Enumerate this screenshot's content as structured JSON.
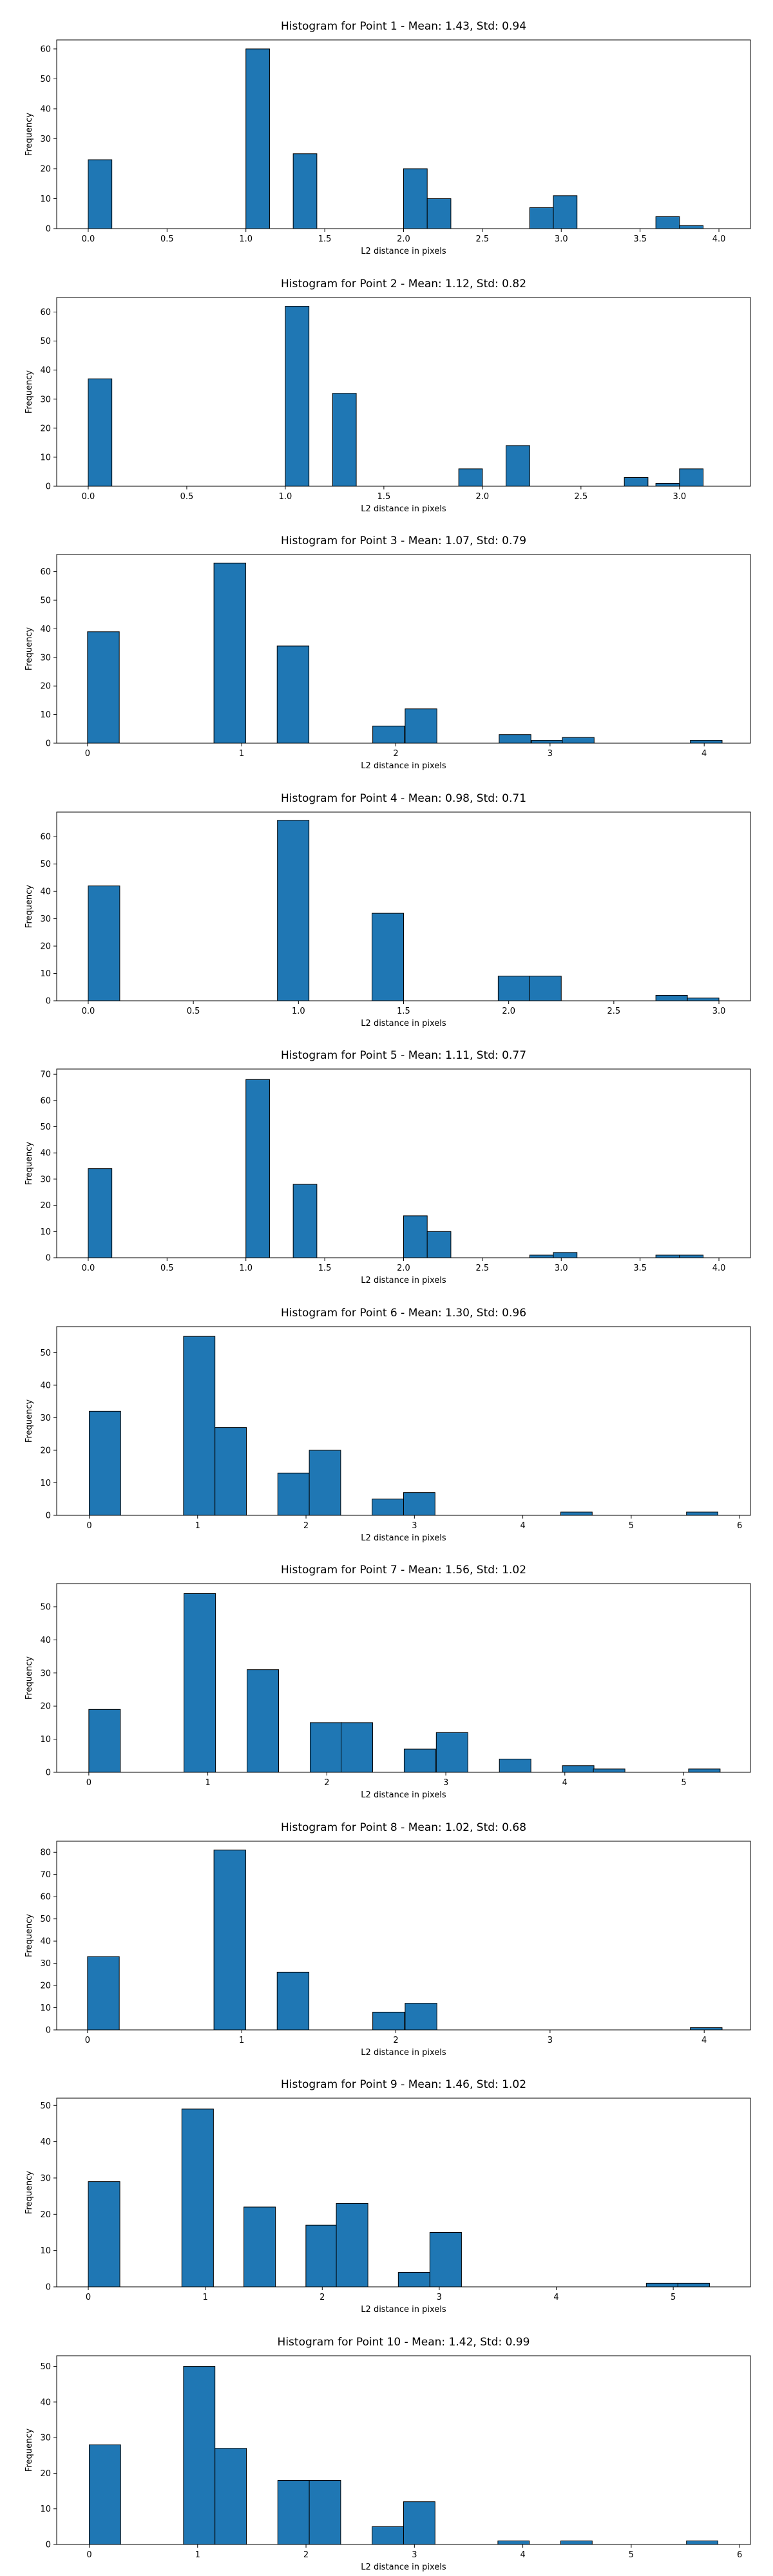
{
  "figure": {
    "bar_color": "#1f77b4",
    "edge_color": "#000000"
  },
  "chart_data": [
    {
      "type": "bar",
      "title": "Histogram for Point 1 - Mean: 1.43, Std: 0.94",
      "xlabel": "L2 distance in pixels",
      "ylabel": "Frequency",
      "xlim": [
        -0.2,
        4.2
      ],
      "ylim": [
        0,
        63
      ],
      "xticks": [
        0.0,
        0.5,
        1.0,
        1.5,
        2.0,
        2.5,
        3.0,
        3.5,
        4.0
      ],
      "xtick_labels": [
        "0.0",
        "0.5",
        "1.0",
        "1.5",
        "2.0",
        "2.5",
        "3.0",
        "3.5",
        "4.0"
      ],
      "yticks": [
        0,
        10,
        20,
        30,
        40,
        50,
        60
      ],
      "ytick_labels": [
        "0",
        "10",
        "20",
        "30",
        "40",
        "50",
        "60"
      ],
      "bin_width": 0.15,
      "bins": [
        [
          0.0,
          23
        ],
        [
          1.0,
          60
        ],
        [
          1.3,
          25
        ],
        [
          2.0,
          20
        ],
        [
          2.15,
          10
        ],
        [
          2.8,
          7
        ],
        [
          2.95,
          11
        ],
        [
          3.6,
          4
        ],
        [
          3.75,
          1
        ]
      ]
    },
    {
      "type": "bar",
      "title": "Histogram for Point 2 - Mean: 1.12, Std: 0.82",
      "xlabel": "L2 distance in pixels",
      "ylabel": "Frequency",
      "xlim": [
        -0.16,
        3.36
      ],
      "ylim": [
        0,
        65
      ],
      "xticks": [
        0.0,
        0.5,
        1.0,
        1.5,
        2.0,
        2.5,
        3.0
      ],
      "xtick_labels": [
        "0.0",
        "0.5",
        "1.0",
        "1.5",
        "2.0",
        "2.5",
        "3.0"
      ],
      "yticks": [
        0,
        10,
        20,
        30,
        40,
        50,
        60
      ],
      "ytick_labels": [
        "0",
        "10",
        "20",
        "30",
        "40",
        "50",
        "60"
      ],
      "bin_width": 0.12,
      "bins": [
        [
          0.0,
          37
        ],
        [
          1.0,
          62
        ],
        [
          1.24,
          32
        ],
        [
          1.88,
          6
        ],
        [
          2.12,
          14
        ],
        [
          2.72,
          3
        ],
        [
          2.88,
          1
        ],
        [
          3.0,
          6
        ]
      ]
    },
    {
      "type": "bar",
      "title": "Histogram for Point 3 - Mean: 1.07, Std: 0.79",
      "xlabel": "L2 distance in pixels",
      "ylabel": "Frequency",
      "xlim": [
        -0.2,
        4.3
      ],
      "ylim": [
        0,
        66
      ],
      "xticks": [
        0,
        1,
        2,
        3,
        4
      ],
      "xtick_labels": [
        "0",
        "1",
        "2",
        "3",
        "4"
      ],
      "yticks": [
        0,
        10,
        20,
        30,
        40,
        50,
        60
      ],
      "ytick_labels": [
        "0",
        "10",
        "20",
        "30",
        "40",
        "50",
        "60"
      ],
      "bin_width": 0.206,
      "bins": [
        [
          0.0,
          39
        ],
        [
          0.82,
          63
        ],
        [
          1.23,
          34
        ],
        [
          1.85,
          6
        ],
        [
          2.06,
          12
        ],
        [
          2.67,
          3
        ],
        [
          2.88,
          1
        ],
        [
          3.08,
          2
        ],
        [
          3.91,
          1
        ]
      ]
    },
    {
      "type": "bar",
      "title": "Histogram for Point 4 - Mean: 0.98, Std: 0.71",
      "xlabel": "L2 distance in pixels",
      "ylabel": "Frequency",
      "xlim": [
        -0.15,
        3.15
      ],
      "ylim": [
        0,
        69
      ],
      "xticks": [
        0.0,
        0.5,
        1.0,
        1.5,
        2.0,
        2.5,
        3.0
      ],
      "xtick_labels": [
        "0.0",
        "0.5",
        "1.0",
        "1.5",
        "2.0",
        "2.5",
        "3.0"
      ],
      "yticks": [
        0,
        10,
        20,
        30,
        40,
        50,
        60
      ],
      "ytick_labels": [
        "0",
        "10",
        "20",
        "30",
        "40",
        "50",
        "60"
      ],
      "bin_width": 0.15,
      "bins": [
        [
          0.0,
          42
        ],
        [
          0.9,
          66
        ],
        [
          1.35,
          32
        ],
        [
          1.95,
          9
        ],
        [
          2.1,
          9
        ],
        [
          2.7,
          2
        ],
        [
          2.85,
          1
        ]
      ]
    },
    {
      "type": "bar",
      "title": "Histogram for Point 5 - Mean: 1.11, Std: 0.77",
      "xlabel": "L2 distance in pixels",
      "ylabel": "Frequency",
      "xlim": [
        -0.2,
        4.2
      ],
      "ylim": [
        0,
        72
      ],
      "xticks": [
        0.0,
        0.5,
        1.0,
        1.5,
        2.0,
        2.5,
        3.0,
        3.5,
        4.0
      ],
      "xtick_labels": [
        "0.0",
        "0.5",
        "1.0",
        "1.5",
        "2.0",
        "2.5",
        "3.0",
        "3.5",
        "4.0"
      ],
      "yticks": [
        0,
        10,
        20,
        30,
        40,
        50,
        60,
        70
      ],
      "ytick_labels": [
        "0",
        "10",
        "20",
        "30",
        "40",
        "50",
        "60",
        "70"
      ],
      "bin_width": 0.15,
      "bins": [
        [
          0.0,
          34
        ],
        [
          1.0,
          68
        ],
        [
          1.3,
          28
        ],
        [
          2.0,
          16
        ],
        [
          2.15,
          10
        ],
        [
          2.8,
          1
        ],
        [
          2.95,
          2
        ],
        [
          3.6,
          1
        ],
        [
          3.75,
          1
        ]
      ]
    },
    {
      "type": "bar",
      "title": "Histogram for Point 6 - Mean: 1.30, Std: 0.96",
      "xlabel": "L2 distance in pixels",
      "ylabel": "Frequency",
      "xlim": [
        -0.3,
        6.1
      ],
      "ylim": [
        0,
        58
      ],
      "xticks": [
        0,
        1,
        2,
        3,
        4,
        5,
        6
      ],
      "xtick_labels": [
        "0",
        "1",
        "2",
        "3",
        "4",
        "5",
        "6"
      ],
      "yticks": [
        0,
        10,
        20,
        30,
        40,
        50
      ],
      "ytick_labels": [
        "0",
        "10",
        "20",
        "30",
        "40",
        "50"
      ],
      "bin_width": 0.29,
      "bins": [
        [
          0.0,
          32
        ],
        [
          0.87,
          55
        ],
        [
          1.16,
          27
        ],
        [
          1.74,
          13
        ],
        [
          2.03,
          20
        ],
        [
          2.61,
          5
        ],
        [
          2.9,
          7
        ],
        [
          4.35,
          1
        ],
        [
          5.51,
          1
        ]
      ]
    },
    {
      "type": "bar",
      "title": "Histogram for Point 7 - Mean: 1.56, Std: 1.02",
      "xlabel": "L2 distance in pixels",
      "ylabel": "Frequency",
      "xlim": [
        -0.27,
        5.56
      ],
      "ylim": [
        0,
        57
      ],
      "xticks": [
        0,
        1,
        2,
        3,
        4,
        5
      ],
      "xtick_labels": [
        "0",
        "1",
        "2",
        "3",
        "4",
        "5"
      ],
      "yticks": [
        0,
        10,
        20,
        30,
        40,
        50
      ],
      "ytick_labels": [
        "0",
        "10",
        "20",
        "30",
        "40",
        "50"
      ],
      "bin_width": 0.265,
      "bins": [
        [
          0.0,
          19
        ],
        [
          0.8,
          54
        ],
        [
          1.33,
          31
        ],
        [
          1.86,
          15
        ],
        [
          2.12,
          15
        ],
        [
          2.65,
          7
        ],
        [
          2.92,
          12
        ],
        [
          3.45,
          4
        ],
        [
          3.98,
          2
        ],
        [
          4.24,
          1
        ],
        [
          5.04,
          1
        ]
      ]
    },
    {
      "type": "bar",
      "title": "Histogram for Point 8 - Mean: 1.02, Std: 0.68",
      "xlabel": "L2 distance in pixels",
      "ylabel": "Frequency",
      "xlim": [
        -0.2,
        4.3
      ],
      "ylim": [
        0,
        85
      ],
      "xticks": [
        0,
        1,
        2,
        3,
        4
      ],
      "xtick_labels": [
        "0",
        "1",
        "2",
        "3",
        "4"
      ],
      "yticks": [
        0,
        10,
        20,
        30,
        40,
        50,
        60,
        70,
        80
      ],
      "ytick_labels": [
        "0",
        "10",
        "20",
        "30",
        "40",
        "50",
        "60",
        "70",
        "80"
      ],
      "bin_width": 0.206,
      "bins": [
        [
          0.0,
          33
        ],
        [
          0.82,
          81
        ],
        [
          1.23,
          26
        ],
        [
          1.85,
          8
        ],
        [
          2.06,
          12
        ],
        [
          3.91,
          1
        ]
      ]
    },
    {
      "type": "bar",
      "title": "Histogram for Point 9 - Mean: 1.46, Std: 1.02",
      "xlabel": "L2 distance in pixels",
      "ylabel": "Frequency",
      "xlim": [
        -0.27,
        5.66
      ],
      "ylim": [
        0,
        52
      ],
      "xticks": [
        0,
        1,
        2,
        3,
        4,
        5
      ],
      "xtick_labels": [
        "0",
        "1",
        "2",
        "3",
        "4",
        "5"
      ],
      "yticks": [
        0,
        10,
        20,
        30,
        40,
        50
      ],
      "ytick_labels": [
        "0",
        "10",
        "20",
        "30",
        "40",
        "50"
      ],
      "bin_width": 0.27,
      "bins": [
        [
          0.0,
          29
        ],
        [
          0.8,
          49
        ],
        [
          1.33,
          22
        ],
        [
          1.86,
          17
        ],
        [
          2.12,
          23
        ],
        [
          2.65,
          4
        ],
        [
          2.92,
          15
        ],
        [
          4.77,
          1
        ],
        [
          5.04,
          1
        ]
      ]
    },
    {
      "type": "bar",
      "title": "Histogram for Point 10 - Mean: 1.42, Std: 0.99",
      "xlabel": "L2 distance in pixels",
      "ylabel": "Frequency",
      "xlim": [
        -0.3,
        6.1
      ],
      "ylim": [
        0,
        53
      ],
      "xticks": [
        0,
        1,
        2,
        3,
        4,
        5,
        6
      ],
      "xtick_labels": [
        "0",
        "1",
        "2",
        "3",
        "4",
        "5",
        "6"
      ],
      "yticks": [
        0,
        10,
        20,
        30,
        40,
        50
      ],
      "ytick_labels": [
        "0",
        "10",
        "20",
        "30",
        "40",
        "50"
      ],
      "bin_width": 0.29,
      "bins": [
        [
          0.0,
          28
        ],
        [
          0.87,
          50
        ],
        [
          1.16,
          27
        ],
        [
          1.74,
          18
        ],
        [
          2.03,
          18
        ],
        [
          2.61,
          5
        ],
        [
          2.9,
          12
        ],
        [
          3.77,
          1
        ],
        [
          4.35,
          1
        ],
        [
          5.51,
          1
        ]
      ]
    }
  ]
}
